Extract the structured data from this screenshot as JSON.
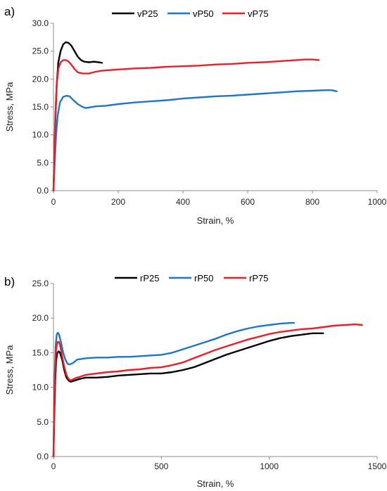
{
  "chart_data": [
    {
      "type": "line",
      "panel_label": "a)",
      "xlabel": "Strain, %",
      "ylabel": "Stress, MPa",
      "xlim": [
        0,
        1000
      ],
      "ylim": [
        0,
        30
      ],
      "xticks": [
        0,
        200,
        400,
        600,
        800,
        1000
      ],
      "xtick_labels": [
        "0",
        "200",
        "400",
        "600",
        "800",
        "1000"
      ],
      "yticks": [
        0,
        5,
        10,
        15,
        20,
        25,
        30
      ],
      "ytick_labels": [
        "0.0",
        "5.0",
        "10.0",
        "15.0",
        "20.0",
        "25.0",
        "30.0"
      ],
      "grid": false,
      "legend_position": "top",
      "series": [
        {
          "name": "vP25",
          "color": "#000000",
          "points": [
            [
              0,
              0
            ],
            [
              3,
              6
            ],
            [
              6,
              13
            ],
            [
              10,
              19
            ],
            [
              15,
              23
            ],
            [
              22,
              25
            ],
            [
              30,
              26.2
            ],
            [
              38,
              26.6
            ],
            [
              46,
              26.5
            ],
            [
              55,
              26.0
            ],
            [
              65,
              25.0
            ],
            [
              75,
              24.0
            ],
            [
              85,
              23.4
            ],
            [
              95,
              23.1
            ],
            [
              110,
              23.0
            ],
            [
              125,
              23.1
            ],
            [
              140,
              23.0
            ],
            [
              150,
              22.9
            ]
          ]
        },
        {
          "name": "vP50",
          "color": "#1f77c4",
          "points": [
            [
              0,
              0
            ],
            [
              4,
              5
            ],
            [
              8,
              10
            ],
            [
              13,
              13.5
            ],
            [
              20,
              15.8
            ],
            [
              30,
              16.8
            ],
            [
              40,
              17.0
            ],
            [
              50,
              16.9
            ],
            [
              60,
              16.3
            ],
            [
              75,
              15.5
            ],
            [
              90,
              15.0
            ],
            [
              100,
              14.8
            ],
            [
              110,
              14.9
            ],
            [
              130,
              15.1
            ],
            [
              160,
              15.2
            ],
            [
              200,
              15.5
            ],
            [
              250,
              15.8
            ],
            [
              300,
              16.0
            ],
            [
              350,
              16.2
            ],
            [
              400,
              16.5
            ],
            [
              450,
              16.7
            ],
            [
              500,
              16.9
            ],
            [
              550,
              17.0
            ],
            [
              600,
              17.2
            ],
            [
              650,
              17.4
            ],
            [
              700,
              17.6
            ],
            [
              750,
              17.8
            ],
            [
              800,
              17.9
            ],
            [
              840,
              18.0
            ],
            [
              860,
              18.0
            ],
            [
              875,
              17.8
            ]
          ]
        },
        {
          "name": "vP75",
          "color": "#e8202a",
          "points": [
            [
              0,
              0
            ],
            [
              3,
              8
            ],
            [
              6,
              14
            ],
            [
              10,
              19
            ],
            [
              15,
              21.8
            ],
            [
              22,
              23.0
            ],
            [
              30,
              23.4
            ],
            [
              38,
              23.4
            ],
            [
              45,
              23.2
            ],
            [
              55,
              22.6
            ],
            [
              65,
              21.8
            ],
            [
              75,
              21.2
            ],
            [
              90,
              21.0
            ],
            [
              110,
              21.0
            ],
            [
              130,
              21.3
            ],
            [
              150,
              21.5
            ],
            [
              200,
              21.7
            ],
            [
              250,
              21.9
            ],
            [
              300,
              22.0
            ],
            [
              350,
              22.2
            ],
            [
              400,
              22.3
            ],
            [
              450,
              22.4
            ],
            [
              500,
              22.6
            ],
            [
              550,
              22.7
            ],
            [
              600,
              22.9
            ],
            [
              650,
              23.0
            ],
            [
              700,
              23.2
            ],
            [
              750,
              23.4
            ],
            [
              780,
              23.5
            ],
            [
              800,
              23.5
            ],
            [
              820,
              23.4
            ]
          ]
        }
      ]
    },
    {
      "type": "line",
      "panel_label": "b)",
      "xlabel": "Strain, %",
      "ylabel": "Stress, MPa",
      "xlim": [
        0,
        1500
      ],
      "ylim": [
        0,
        25
      ],
      "xticks": [
        0,
        500,
        1000,
        1500
      ],
      "xtick_labels": [
        "0",
        "500",
        "1000",
        "1500"
      ],
      "yticks": [
        0,
        5,
        10,
        15,
        20,
        25
      ],
      "ytick_labels": [
        "0.0",
        "5.0",
        "10.0",
        "15.0",
        "20.0",
        "25.0"
      ],
      "grid": false,
      "legend_position": "top",
      "series": [
        {
          "name": "rP25",
          "color": "#000000",
          "points": [
            [
              0,
              0
            ],
            [
              4,
              6
            ],
            [
              8,
              11
            ],
            [
              12,
              13.8
            ],
            [
              18,
              15.0
            ],
            [
              24,
              15.2
            ],
            [
              30,
              15.0
            ],
            [
              40,
              14.0
            ],
            [
              50,
              12.5
            ],
            [
              60,
              11.4
            ],
            [
              70,
              11.0
            ],
            [
              80,
              10.8
            ],
            [
              100,
              11.0
            ],
            [
              120,
              11.2
            ],
            [
              150,
              11.4
            ],
            [
              200,
              11.4
            ],
            [
              250,
              11.5
            ],
            [
              300,
              11.7
            ],
            [
              350,
              11.8
            ],
            [
              400,
              11.9
            ],
            [
              450,
              12.0
            ],
            [
              500,
              12.0
            ],
            [
              550,
              12.2
            ],
            [
              600,
              12.5
            ],
            [
              650,
              12.9
            ],
            [
              700,
              13.5
            ],
            [
              750,
              14.1
            ],
            [
              800,
              14.7
            ],
            [
              850,
              15.2
            ],
            [
              900,
              15.7
            ],
            [
              950,
              16.2
            ],
            [
              1000,
              16.7
            ],
            [
              1050,
              17.1
            ],
            [
              1100,
              17.4
            ],
            [
              1150,
              17.6
            ],
            [
              1200,
              17.8
            ],
            [
              1250,
              17.8
            ]
          ]
        },
        {
          "name": "rP50",
          "color": "#1f77c4",
          "points": [
            [
              0,
              0
            ],
            [
              3,
              7
            ],
            [
              6,
              12
            ],
            [
              10,
              16
            ],
            [
              15,
              17.6
            ],
            [
              20,
              17.9
            ],
            [
              26,
              17.6
            ],
            [
              35,
              16.5
            ],
            [
              45,
              15.0
            ],
            [
              55,
              14.0
            ],
            [
              65,
              13.4
            ],
            [
              75,
              13.3
            ],
            [
              90,
              13.5
            ],
            [
              110,
              14.0
            ],
            [
              150,
              14.2
            ],
            [
              200,
              14.3
            ],
            [
              250,
              14.3
            ],
            [
              300,
              14.4
            ],
            [
              350,
              14.4
            ],
            [
              400,
              14.5
            ],
            [
              450,
              14.6
            ],
            [
              500,
              14.7
            ],
            [
              550,
              15.0
            ],
            [
              600,
              15.5
            ],
            [
              650,
              16.0
            ],
            [
              700,
              16.5
            ],
            [
              750,
              17.0
            ],
            [
              800,
              17.6
            ],
            [
              850,
              18.1
            ],
            [
              900,
              18.5
            ],
            [
              950,
              18.8
            ],
            [
              1000,
              19.0
            ],
            [
              1050,
              19.2
            ],
            [
              1100,
              19.3
            ],
            [
              1115,
              19.3
            ]
          ]
        },
        {
          "name": "rP75",
          "color": "#e8202a",
          "points": [
            [
              0,
              0
            ],
            [
              3,
              6
            ],
            [
              7,
              12
            ],
            [
              12,
              15.5
            ],
            [
              18,
              16.5
            ],
            [
              24,
              16.6
            ],
            [
              30,
              16.2
            ],
            [
              40,
              14.5
            ],
            [
              50,
              13.0
            ],
            [
              60,
              11.8
            ],
            [
              70,
              11.2
            ],
            [
              80,
              11.0
            ],
            [
              100,
              11.3
            ],
            [
              130,
              11.6
            ],
            [
              150,
              11.8
            ],
            [
              200,
              12.0
            ],
            [
              250,
              12.2
            ],
            [
              300,
              12.3
            ],
            [
              350,
              12.5
            ],
            [
              400,
              12.6
            ],
            [
              450,
              12.8
            ],
            [
              500,
              12.9
            ],
            [
              550,
              13.2
            ],
            [
              600,
              13.6
            ],
            [
              650,
              14.2
            ],
            [
              700,
              14.8
            ],
            [
              750,
              15.4
            ],
            [
              800,
              15.9
            ],
            [
              850,
              16.4
            ],
            [
              900,
              16.9
            ],
            [
              950,
              17.3
            ],
            [
              1000,
              17.7
            ],
            [
              1050,
              18.0
            ],
            [
              1100,
              18.2
            ],
            [
              1150,
              18.4
            ],
            [
              1200,
              18.5
            ],
            [
              1250,
              18.7
            ],
            [
              1300,
              18.9
            ],
            [
              1350,
              19.0
            ],
            [
              1400,
              19.1
            ],
            [
              1430,
              19.0
            ]
          ]
        }
      ]
    }
  ]
}
